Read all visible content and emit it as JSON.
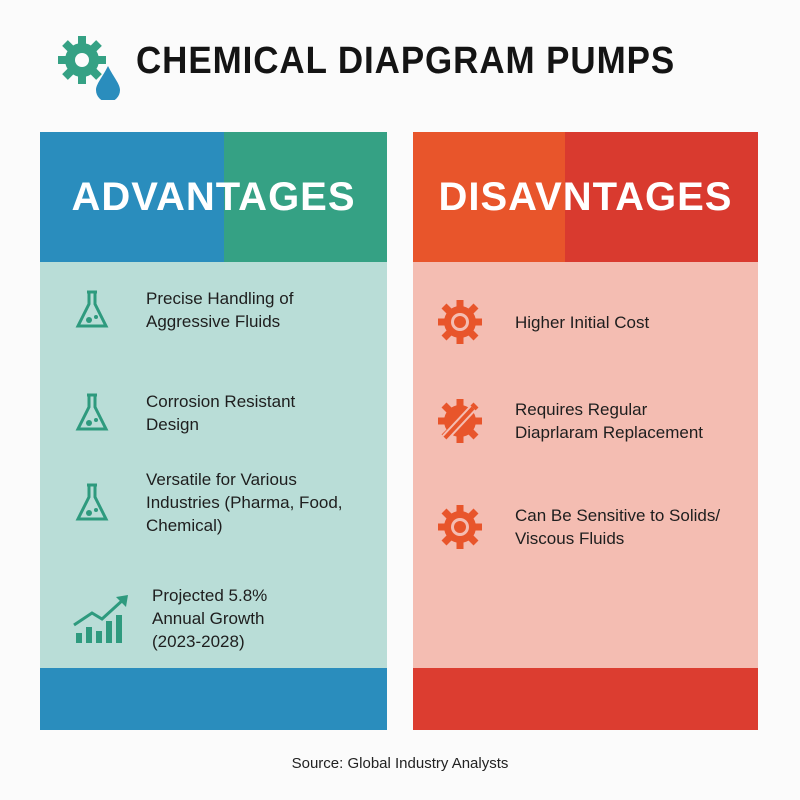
{
  "header": {
    "title": "CHEMICAL DIAPGRAM PUMPS",
    "icons": [
      "gear-icon",
      "water-drop-icon"
    ]
  },
  "advantages": {
    "title": "ADVANTAGES",
    "colors": [
      "#2a8dbd",
      "#35a184"
    ],
    "items": [
      {
        "icon": "flask-icon",
        "text": "Precise Handling of\nAggressive Fluids"
      },
      {
        "icon": "flask-icon",
        "text": "Corrosion Resistant\nDesign"
      },
      {
        "icon": "flask-icon",
        "text": "Versatile for Various\nIndustries (Pharma, Food,\nChemical)"
      },
      {
        "icon": "growth-chart-icon",
        "text": "Projected 5.8%\nAnnual Growth\n(2023-2028)"
      }
    ]
  },
  "disadvantages": {
    "title": "DISAVNTAGES",
    "colors": [
      "#e8552b",
      "#d93a2f"
    ],
    "items": [
      {
        "icon": "gear-icon",
        "text": "Higher Initial Cost"
      },
      {
        "icon": "gear-wrench-icon",
        "text": "Requires Regular\nDiaprlaram Replacement"
      },
      {
        "icon": "gear-icon",
        "text": "Can Be Sensitive to Solids/\n Viscous Fluids"
      }
    ]
  },
  "source": "Source: Global Industry Analysts"
}
